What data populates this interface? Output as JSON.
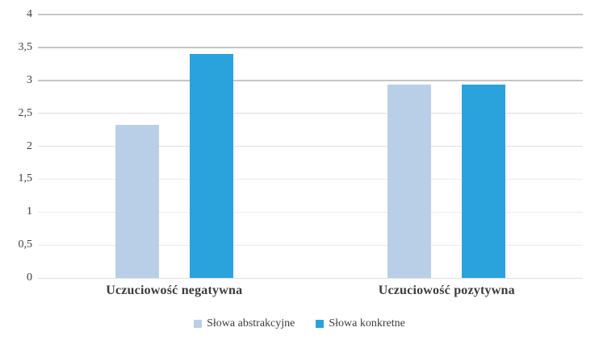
{
  "chart_data": {
    "type": "bar",
    "title": "",
    "xlabel": "",
    "ylabel": "",
    "categories": [
      "Uczuciowość negatywna",
      "Uczuciowość pozytywna"
    ],
    "series": [
      {
        "name": "Słowa abstrakcyjne",
        "color": "#b9cfe7",
        "values": [
          2.32,
          2.93
        ]
      },
      {
        "name": "Słowa konkretne",
        "color": "#2aa3dc",
        "values": [
          3.4,
          2.93
        ]
      }
    ],
    "ylim": [
      0,
      4
    ],
    "ytick_step": 0.5,
    "ytick_labels": [
      "0",
      "0,5",
      "1",
      "1,5",
      "2",
      "2,5",
      "3",
      "3,5",
      "4"
    ],
    "grid": true,
    "legend_position": "bottom-center",
    "background_color": "#ffffff"
  }
}
